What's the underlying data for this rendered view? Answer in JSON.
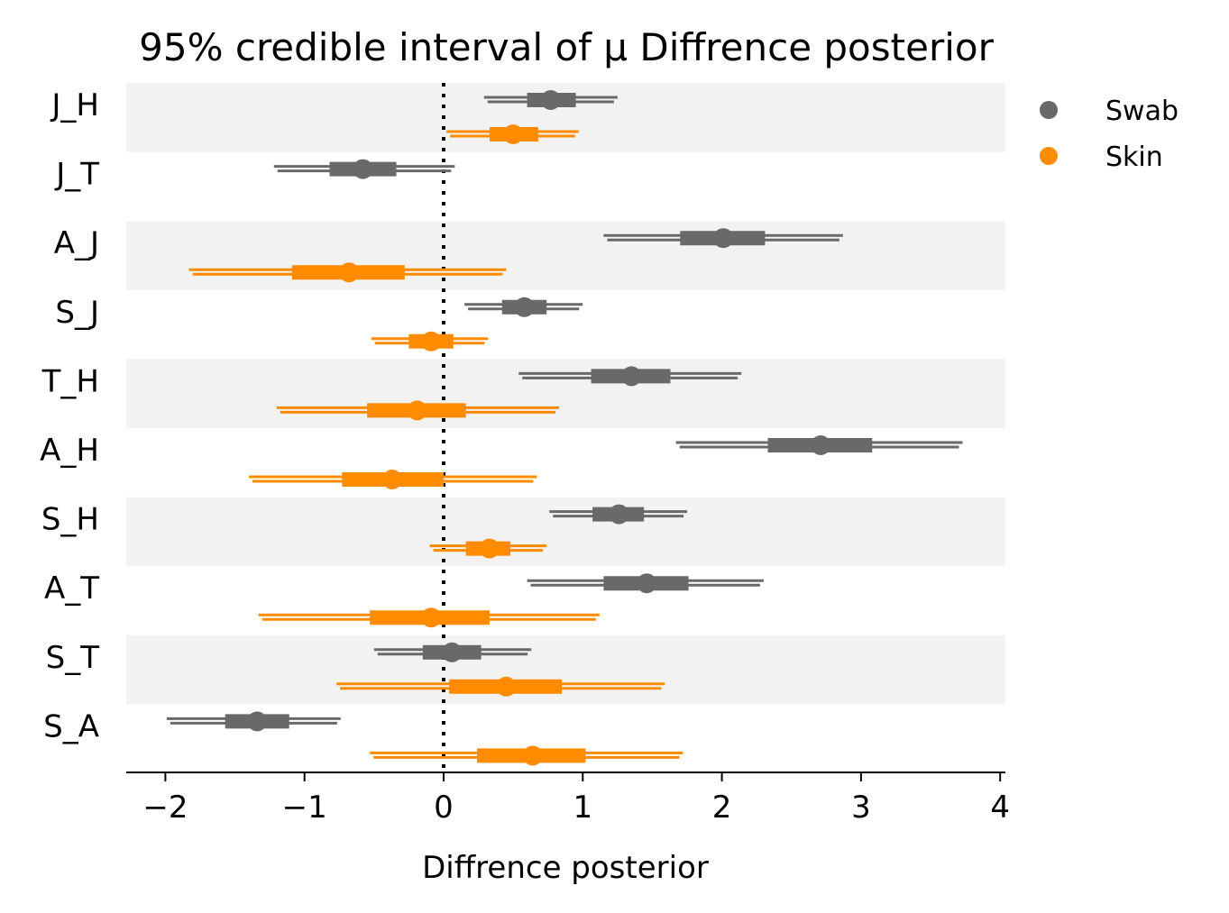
{
  "chart_data": {
    "type": "forest",
    "title": "95% credible interval of μ Diffrence posterior",
    "xlabel": "Diffrence posterior",
    "ylabel": "",
    "xlim": [
      -2.3,
      4.05
    ],
    "xticks": [
      -2,
      -1,
      0,
      1,
      2,
      3,
      4
    ],
    "xtick_labels": [
      "−2",
      "−1",
      "0",
      "1",
      "2",
      "3",
      "4"
    ],
    "reference_line": 0,
    "legend": {
      "position": "top-right"
    },
    "series": [
      {
        "name": "Swab",
        "color": "#696969"
      },
      {
        "name": "Skin",
        "color": "#ff8c00"
      }
    ],
    "categories": [
      "J_H",
      "J_T",
      "A_J",
      "S_J",
      "T_H",
      "A_H",
      "S_H",
      "A_T",
      "S_T",
      "S_A"
    ],
    "band_colors": [
      "#f2f2f2",
      "#ffffff"
    ],
    "rows": [
      {
        "category": "J_H",
        "Swab": {
          "mean": 0.77,
          "hdi50": [
            0.6,
            0.95
          ],
          "hdi95": [
            0.29,
            1.25
          ]
        },
        "Skin": {
          "mean": 0.5,
          "hdi50": [
            0.33,
            0.68
          ],
          "hdi95": [
            0.02,
            0.97
          ]
        }
      },
      {
        "category": "J_T",
        "Swab": {
          "mean": -0.58,
          "hdi50": [
            -0.82,
            -0.34
          ],
          "hdi95": [
            -1.22,
            0.08
          ]
        },
        "Skin": null
      },
      {
        "category": "A_J",
        "Swab": {
          "mean": 2.01,
          "hdi50": [
            1.7,
            2.31
          ],
          "hdi95": [
            1.15,
            2.87
          ]
        },
        "Skin": {
          "mean": -0.68,
          "hdi50": [
            -1.09,
            -0.28
          ],
          "hdi95": [
            -1.83,
            0.45
          ]
        }
      },
      {
        "category": "S_J",
        "Swab": {
          "mean": 0.58,
          "hdi50": [
            0.42,
            0.74
          ],
          "hdi95": [
            0.15,
            1.0
          ]
        },
        "Skin": {
          "mean": -0.09,
          "hdi50": [
            -0.25,
            0.07
          ],
          "hdi95": [
            -0.52,
            0.32
          ]
        }
      },
      {
        "category": "T_H",
        "Swab": {
          "mean": 1.35,
          "hdi50": [
            1.06,
            1.63
          ],
          "hdi95": [
            0.54,
            2.14
          ]
        },
        "Skin": {
          "mean": -0.19,
          "hdi50": [
            -0.55,
            0.16
          ],
          "hdi95": [
            -1.2,
            0.83
          ]
        }
      },
      {
        "category": "A_H",
        "Swab": {
          "mean": 2.71,
          "hdi50": [
            2.33,
            3.08
          ],
          "hdi95": [
            1.67,
            3.73
          ]
        },
        "Skin": {
          "mean": -0.37,
          "hdi50": [
            -0.73,
            0.0
          ],
          "hdi95": [
            -1.4,
            0.67
          ]
        }
      },
      {
        "category": "S_H",
        "Swab": {
          "mean": 1.26,
          "hdi50": [
            1.07,
            1.44
          ],
          "hdi95": [
            0.76,
            1.75
          ]
        },
        "Skin": {
          "mean": 0.33,
          "hdi50": [
            0.16,
            0.48
          ],
          "hdi95": [
            -0.1,
            0.74
          ]
        }
      },
      {
        "category": "A_T",
        "Swab": {
          "mean": 1.46,
          "hdi50": [
            1.15,
            1.76
          ],
          "hdi95": [
            0.6,
            2.3
          ]
        },
        "Skin": {
          "mean": -0.09,
          "hdi50": [
            -0.53,
            0.33
          ],
          "hdi95": [
            -1.33,
            1.12
          ]
        }
      },
      {
        "category": "S_T",
        "Swab": {
          "mean": 0.06,
          "hdi50": [
            -0.15,
            0.27
          ],
          "hdi95": [
            -0.5,
            0.63
          ]
        },
        "Skin": {
          "mean": 0.45,
          "hdi50": [
            0.04,
            0.85
          ],
          "hdi95": [
            -0.77,
            1.59
          ]
        }
      },
      {
        "category": "S_A",
        "Swab": {
          "mean": -1.34,
          "hdi50": [
            -1.57,
            -1.11
          ],
          "hdi95": [
            -1.99,
            -0.74
          ]
        },
        "Skin": {
          "mean": 0.64,
          "hdi50": [
            0.24,
            1.02
          ],
          "hdi95": [
            -0.53,
            1.72
          ]
        }
      }
    ]
  }
}
